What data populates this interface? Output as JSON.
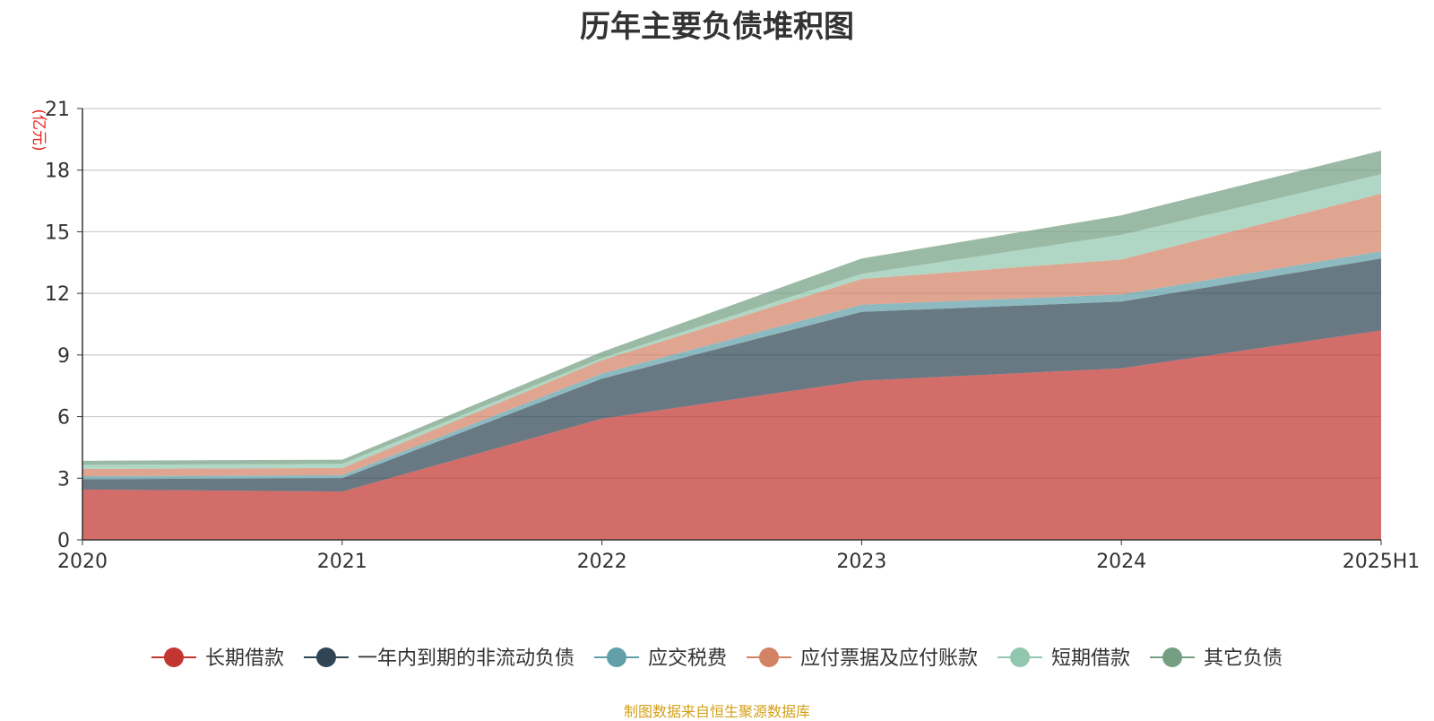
{
  "chart_data": {
    "type": "area",
    "stacked": true,
    "title": "历年主要负债堆积图",
    "unit_label": "(亿元)",
    "categories": [
      "2020",
      "2021",
      "2022",
      "2023",
      "2024",
      "2025H1"
    ],
    "ylim": [
      0,
      21
    ],
    "yticks": [
      0,
      3,
      6,
      9,
      12,
      15,
      18,
      21
    ],
    "grid": true,
    "legend_position": "bottom",
    "series": [
      {
        "name": "长期借款",
        "color": "#c23531",
        "values": [
          2.45,
          2.35,
          5.9,
          7.75,
          8.35,
          10.2
        ]
      },
      {
        "name": "一年内到期的非流动负债",
        "color": "#2f4554",
        "values": [
          0.5,
          0.65,
          1.95,
          3.35,
          3.25,
          3.5
        ]
      },
      {
        "name": "应交税费",
        "color": "#61a0a8",
        "values": [
          0.15,
          0.15,
          0.25,
          0.35,
          0.35,
          0.35
        ]
      },
      {
        "name": "应付票据及应付账款",
        "color": "#d48265",
        "values": [
          0.35,
          0.35,
          0.65,
          1.25,
          1.7,
          2.8
        ]
      },
      {
        "name": "短期借款",
        "color": "#91c7ae",
        "values": [
          0.2,
          0.2,
          0.1,
          0.25,
          1.2,
          0.95
        ]
      },
      {
        "name": "其它负债",
        "color": "#749f83",
        "values": [
          0.2,
          0.2,
          0.3,
          0.75,
          0.95,
          1.15
        ]
      }
    ]
  },
  "footer": {
    "source": "制图数据来自恒生聚源数据库"
  }
}
